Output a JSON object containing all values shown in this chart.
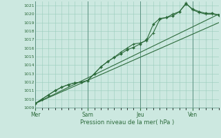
{
  "xlabel": "Pression niveau de la mer( hPa )",
  "background_color": "#cce8e0",
  "grid_color": "#99ccbb",
  "line_color": "#2d6b3c",
  "ylim": [
    1009,
    1021.5
  ],
  "yticks": [
    1009,
    1010,
    1011,
    1012,
    1013,
    1014,
    1015,
    1016,
    1017,
    1018,
    1019,
    1020,
    1021
  ],
  "day_labels": [
    "Mer",
    "Sam",
    "Jeu",
    "Ven"
  ],
  "day_positions": [
    0,
    24,
    48,
    72
  ],
  "xlim": [
    0,
    84
  ],
  "series1_x": [
    0,
    3,
    6,
    9,
    12,
    15,
    18,
    21,
    24,
    27,
    30,
    33,
    36,
    39,
    42,
    45,
    48,
    51,
    54,
    57,
    60,
    63,
    66,
    69,
    72,
    75,
    78,
    81,
    84
  ],
  "series1_y": [
    1009.5,
    1010.0,
    1010.5,
    1011.0,
    1011.4,
    1011.7,
    1011.9,
    1012.0,
    1012.2,
    1013.0,
    1013.8,
    1014.4,
    1014.9,
    1015.3,
    1015.8,
    1016.1,
    1016.5,
    1017.0,
    1018.8,
    1019.5,
    1019.6,
    1019.8,
    1020.3,
    1021.2,
    1020.6,
    1020.3,
    1020.1,
    1020.1,
    1019.9
  ],
  "series2_x": [
    0,
    3,
    6,
    9,
    12,
    15,
    18,
    21,
    24,
    27,
    30,
    33,
    36,
    39,
    42,
    45,
    48,
    51,
    54,
    57,
    60,
    63,
    66,
    69,
    72,
    75,
    78,
    81,
    84
  ],
  "series2_y": [
    1009.5,
    1010.0,
    1010.5,
    1011.0,
    1011.4,
    1011.7,
    1011.9,
    1012.0,
    1012.2,
    1013.0,
    1013.8,
    1014.4,
    1014.9,
    1015.5,
    1016.0,
    1016.5,
    1016.6,
    1016.9,
    1017.8,
    1019.4,
    1019.6,
    1020.0,
    1020.3,
    1021.3,
    1020.5,
    1020.2,
    1020.0,
    1020.0,
    1019.9
  ],
  "series3_x": [
    0,
    84
  ],
  "series3_y": [
    1009.5,
    1019.0
  ],
  "series4_x": [
    0,
    84
  ],
  "series4_y": [
    1009.5,
    1020.0
  ]
}
